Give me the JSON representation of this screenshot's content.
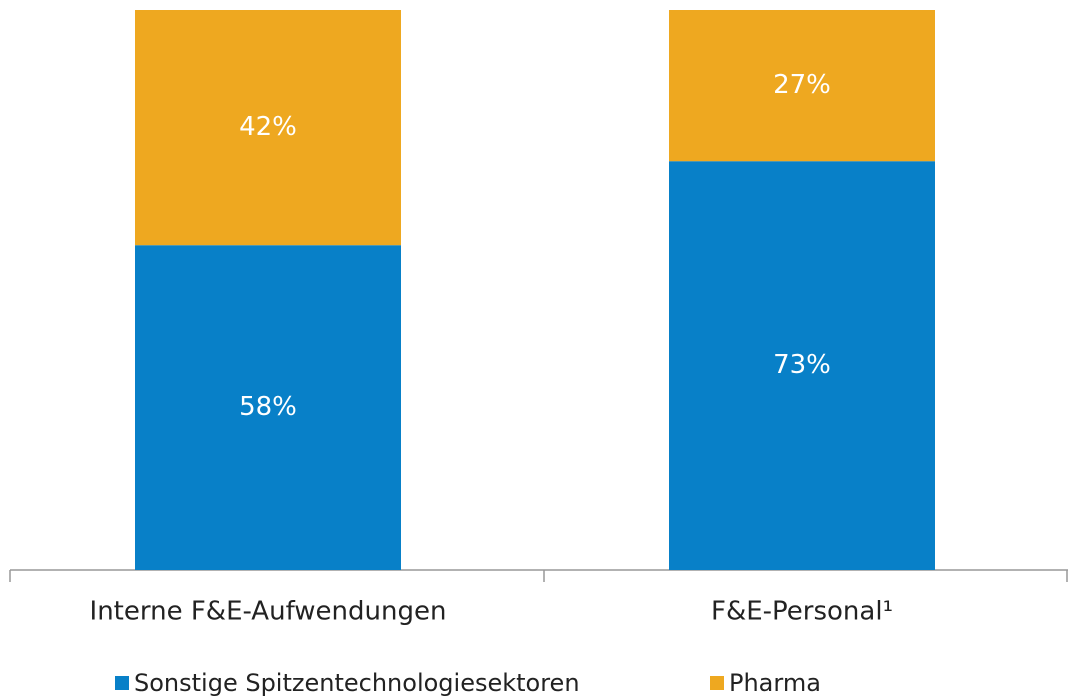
{
  "chart_data": {
    "type": "stacked_bar",
    "categories": [
      "Interne F&E-Aufwendungen",
      "F&E-Personal¹"
    ],
    "series": [
      {
        "name": "Sonstige Spitzentechnologiesektoren",
        "color": "#0880c8",
        "values": [
          58,
          73
        ],
        "value_labels": [
          "58%",
          "73%"
        ]
      },
      {
        "name": "Pharma",
        "color": "#eea820",
        "values": [
          42,
          27
        ],
        "value_labels": [
          "42%",
          "27%"
        ]
      }
    ],
    "ylim": [
      0,
      100
    ]
  }
}
